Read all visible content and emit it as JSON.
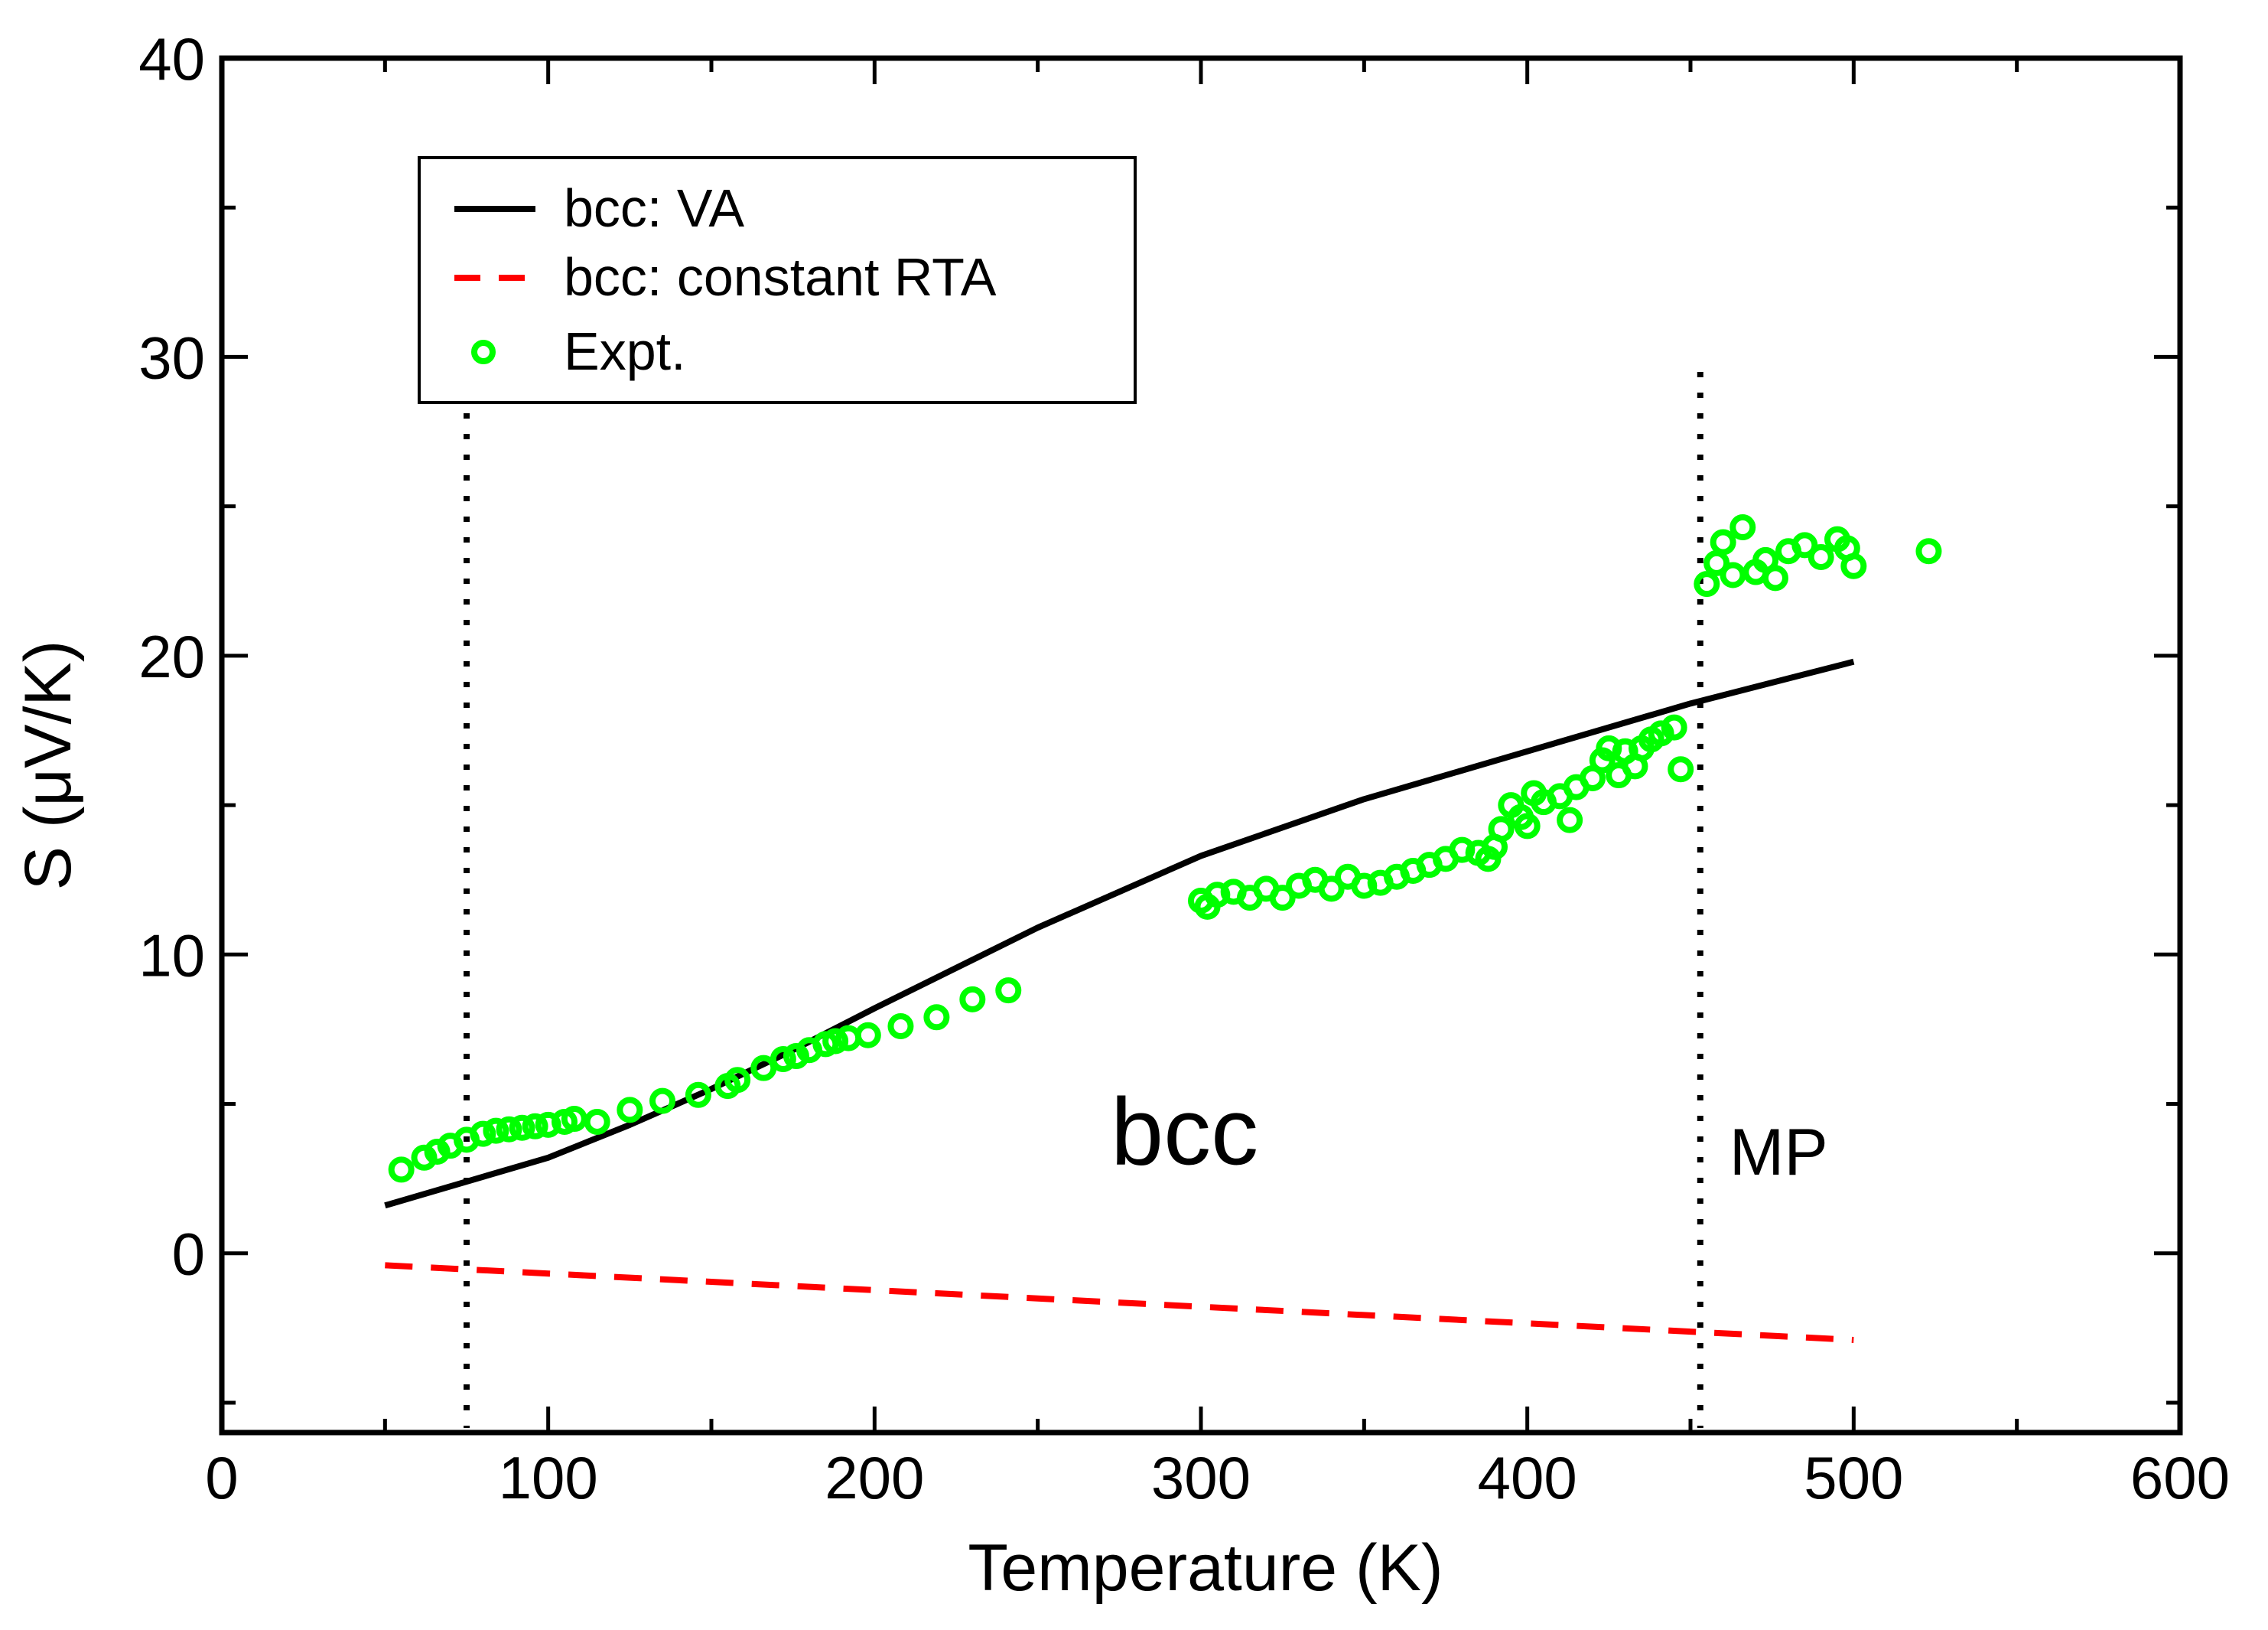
{
  "chart_data": {
    "type": "line",
    "title": "",
    "xlabel": "Temperature (K)",
    "ylabel": "S (μV/K)",
    "xlim": [
      0,
      600
    ],
    "ylim": [
      -6,
      40
    ],
    "xticks": [
      0,
      100,
      200,
      300,
      400,
      500,
      600
    ],
    "yticks": [
      0,
      10,
      20,
      30,
      40
    ],
    "x_tick_labels": [
      "0",
      "100",
      "200",
      "300",
      "400",
      "500",
      "600"
    ],
    "y_tick_labels": [
      "0",
      "10",
      "20",
      "30",
      "40"
    ],
    "x_minor_step": 50,
    "y_minor_step": 5,
    "grid": false,
    "legend_position": "top-left",
    "series": [
      {
        "name": "bcc: VA",
        "style": "solid",
        "color": "#000000",
        "x": [
          50,
          75,
          100,
          125,
          150,
          175,
          200,
          250,
          300,
          350,
          400,
          450,
          500
        ],
        "y": [
          1.6,
          2.4,
          3.2,
          4.3,
          5.5,
          6.8,
          8.2,
          10.9,
          13.3,
          15.2,
          16.8,
          18.4,
          19.8
        ]
      },
      {
        "name": "bcc: constant RTA",
        "style": "dashed",
        "color": "#ff0000",
        "x": [
          50,
          500
        ],
        "y": [
          -0.4,
          -2.9
        ]
      },
      {
        "name": "Expt.",
        "style": "markers",
        "color": "#00ff00",
        "x": [
          55,
          62,
          66,
          70,
          75,
          80,
          84,
          88,
          92,
          96,
          100,
          105,
          108,
          115,
          125,
          135,
          146,
          155,
          158,
          166,
          172,
          176,
          180,
          185,
          188,
          192,
          198,
          208,
          219,
          230,
          241,
          300,
          302,
          305,
          310,
          315,
          320,
          325,
          330,
          335,
          340,
          345,
          350,
          355,
          360,
          365,
          370,
          375,
          380,
          385,
          388,
          390,
          392,
          395,
          398,
          400,
          402,
          405,
          410,
          413,
          415,
          420,
          423,
          425,
          428,
          430,
          433,
          435,
          438,
          441,
          445,
          447,
          455,
          458,
          460,
          463,
          466,
          470,
          473,
          476,
          480,
          485,
          490,
          495,
          498,
          500,
          523
        ],
        "y": [
          2.8,
          3.2,
          3.4,
          3.6,
          3.8,
          4.0,
          4.1,
          4.15,
          4.2,
          4.25,
          4.3,
          4.4,
          4.5,
          4.4,
          4.8,
          5.1,
          5.3,
          5.6,
          5.8,
          6.2,
          6.5,
          6.6,
          6.8,
          7.0,
          7.1,
          7.2,
          7.3,
          7.6,
          7.9,
          8.5,
          8.8,
          11.8,
          11.6,
          12.0,
          12.1,
          11.9,
          12.2,
          11.9,
          12.3,
          12.5,
          12.2,
          12.6,
          12.3,
          12.4,
          12.6,
          12.8,
          13.0,
          13.2,
          13.5,
          13.4,
          13.2,
          13.6,
          14.2,
          15.0,
          14.6,
          14.3,
          15.4,
          15.1,
          15.3,
          14.5,
          15.6,
          15.9,
          16.5,
          16.9,
          16.0,
          16.8,
          16.3,
          16.9,
          17.2,
          17.4,
          17.6,
          16.2,
          22.4,
          23.1,
          23.8,
          22.7,
          24.3,
          22.8,
          23.2,
          22.6,
          23.5,
          23.7,
          23.3,
          23.9,
          23.6,
          23.0,
          23.5
        ]
      }
    ],
    "reference_lines": [
      {
        "axis": "x",
        "value": 75,
        "style": "dotted",
        "label": ""
      },
      {
        "axis": "x",
        "value": 453,
        "style": "dotted",
        "label": ""
      }
    ],
    "annotations": [
      {
        "text": "bcc",
        "x": 295,
        "y": 4.0
      },
      {
        "text": "MP",
        "x": 477,
        "y": 3.4
      }
    ]
  }
}
